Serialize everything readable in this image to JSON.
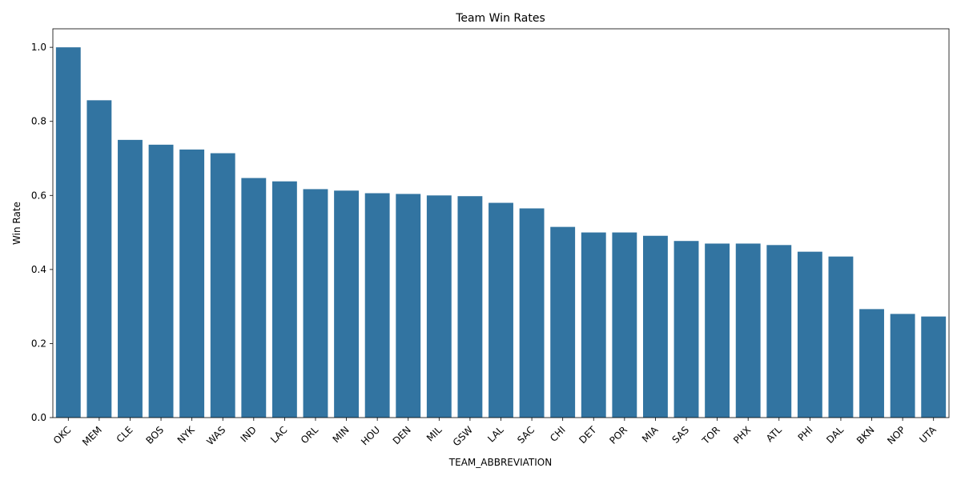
{
  "chart_data": {
    "type": "bar",
    "title": "Team Win Rates",
    "xlabel": "TEAM_ABBREVIATION",
    "ylabel": "Win Rate",
    "ylim": [
      0,
      1.05
    ],
    "yticks": [
      "0.0",
      "0.2",
      "0.4",
      "0.6",
      "0.8",
      "1.0"
    ],
    "grid": false,
    "bar_color": "#3274a1",
    "categories": [
      "OKC",
      "MEM",
      "CLE",
      "BOS",
      "NYK",
      "WAS",
      "IND",
      "LAC",
      "ORL",
      "MIN",
      "HOU",
      "DEN",
      "MIL",
      "GSW",
      "LAL",
      "SAC",
      "CHI",
      "DET",
      "POR",
      "MIA",
      "SAS",
      "TOR",
      "PHX",
      "ATL",
      "PHI",
      "DAL",
      "BKN",
      "NOP",
      "UTA"
    ],
    "values": [
      1.0,
      0.857,
      0.75,
      0.737,
      0.724,
      0.714,
      0.647,
      0.638,
      0.617,
      0.613,
      0.606,
      0.604,
      0.6,
      0.598,
      0.58,
      0.565,
      0.515,
      0.5,
      0.5,
      0.491,
      0.477,
      0.47,
      0.47,
      0.466,
      0.448,
      0.435,
      0.293,
      0.28,
      0.273
    ]
  }
}
